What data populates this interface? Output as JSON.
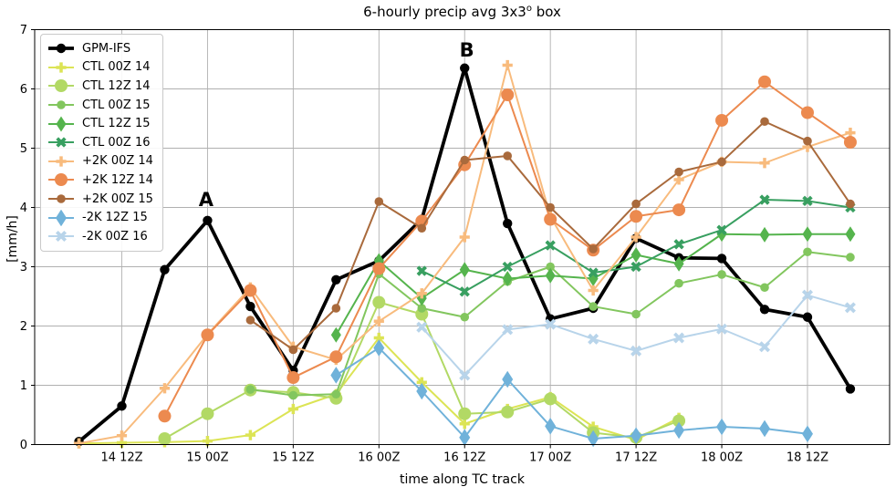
{
  "title": {
    "prefix": "6-hourly precip avg 3x3",
    "sup": "o",
    "suffix": " box"
  },
  "ylabel": "[mm/h]",
  "xlabel": "time along TC track",
  "axis": {
    "x_tick_labels": [
      "14 12Z",
      "15 00Z",
      "15 12Z",
      "16 00Z",
      "16 12Z",
      "17 00Z",
      "17 12Z",
      "18 00Z",
      "18 12Z"
    ],
    "x_tick_hours": [
      12,
      24,
      36,
      48,
      60,
      72,
      84,
      96,
      108
    ],
    "y_tick_labels": [
      "0",
      "1",
      "2",
      "3",
      "4",
      "5",
      "6",
      "7"
    ]
  },
  "legend": {
    "note": "items mirror chart_data.series order"
  },
  "chart_data": {
    "type": "line",
    "title": "6-hourly precip avg 3x3° box",
    "xlabel": "time along TC track",
    "ylabel": "[mm/h]",
    "ylim": [
      0,
      7
    ],
    "xlim_hours_from_14_00Z": [
      -0.2,
      119.5
    ],
    "grid": true,
    "legend_position": "upper left",
    "x_start_hour": 6,
    "x_step_hours": 6,
    "categories": [
      "14 06Z",
      "14 12Z",
      "14 18Z",
      "15 00Z",
      "15 06Z",
      "15 12Z",
      "15 18Z",
      "16 00Z",
      "16 06Z",
      "16 12Z",
      "16 18Z",
      "17 00Z",
      "17 06Z",
      "17 12Z",
      "17 18Z",
      "18 00Z",
      "18 06Z",
      "18 12Z",
      "18 18Z"
    ],
    "series": [
      {
        "name": "GPM-IFS",
        "color": "#000000",
        "marker": "circle",
        "marker_size": 5.2,
        "line_width": 3.8,
        "values": [
          0.05,
          0.65,
          2.95,
          3.78,
          2.33,
          1.25,
          2.78,
          3.1,
          3.8,
          6.35,
          3.73,
          2.12,
          2.3,
          3.48,
          3.15,
          3.14,
          2.28,
          2.15,
          0.94
        ]
      },
      {
        "name": "CTL 00Z 14",
        "color": "#dce455",
        "marker": "plus",
        "marker_size": 5.6,
        "line_width": 2,
        "values": [
          0.02,
          0.03,
          0.04,
          0.06,
          0.16,
          0.6,
          0.85,
          1.8,
          1.05,
          0.35,
          0.6,
          0.8,
          0.3,
          0.08,
          0.45,
          null,
          null,
          null,
          null
        ]
      },
      {
        "name": "CTL 12Z 14",
        "color": "#b2d965",
        "marker": "circle",
        "marker_size": 7,
        "line_width": 2,
        "values": [
          null,
          null,
          0.1,
          0.52,
          0.92,
          0.88,
          0.78,
          2.4,
          2.2,
          0.52,
          0.55,
          0.77,
          0.2,
          0.12,
          0.4,
          null,
          null,
          null,
          null
        ]
      },
      {
        "name": "CTL 00Z 15",
        "color": "#82c65e",
        "marker": "circle",
        "marker_size": 4.8,
        "line_width": 2,
        "values": [
          null,
          null,
          null,
          null,
          0.93,
          0.83,
          0.85,
          2.88,
          2.3,
          2.15,
          2.75,
          3.0,
          2.33,
          2.2,
          2.72,
          2.87,
          2.65,
          3.25,
          3.16
        ]
      },
      {
        "name": "CTL 12Z 15",
        "color": "#55b44d",
        "marker": "diamond",
        "marker_size": 5.5,
        "line_width": 2,
        "values": [
          null,
          null,
          null,
          null,
          null,
          null,
          1.85,
          3.1,
          2.47,
          2.95,
          2.8,
          2.85,
          2.8,
          3.2,
          3.05,
          3.55,
          3.54,
          3.55,
          3.55
        ]
      },
      {
        "name": "CTL 00Z 16",
        "color": "#389f60",
        "marker": "x",
        "marker_size": 6,
        "line_width": 2,
        "values": [
          null,
          null,
          null,
          null,
          null,
          null,
          null,
          null,
          2.93,
          2.58,
          3.0,
          3.36,
          2.9,
          3.0,
          3.38,
          3.62,
          4.13,
          4.11,
          4.0
        ]
      },
      {
        "name": "+2K 00Z 14",
        "color": "#f8bb7d",
        "marker": "plus",
        "marker_size": 5.6,
        "line_width": 2,
        "values": [
          0.02,
          0.15,
          0.95,
          1.86,
          2.65,
          1.65,
          1.43,
          2.08,
          2.55,
          3.5,
          6.4,
          3.85,
          2.6,
          3.5,
          4.47,
          4.77,
          4.75,
          5.02,
          5.26
        ]
      },
      {
        "name": "+2K 12Z 14",
        "color": "#ec8a4f",
        "marker": "circle",
        "marker_size": 7,
        "line_width": 2,
        "values": [
          null,
          null,
          0.48,
          1.85,
          2.6,
          1.13,
          1.48,
          2.97,
          3.77,
          4.72,
          5.9,
          3.8,
          3.28,
          3.85,
          3.96,
          5.47,
          6.12,
          5.6,
          5.1
        ]
      },
      {
        "name": "+2K 00Z 15",
        "color": "#a96a3c",
        "marker": "circle",
        "marker_size": 4.8,
        "line_width": 2,
        "values": [
          null,
          null,
          null,
          null,
          2.1,
          1.6,
          2.3,
          4.1,
          3.65,
          4.8,
          4.87,
          4.0,
          3.3,
          4.06,
          4.6,
          4.77,
          5.45,
          5.12,
          4.06
        ]
      },
      {
        "name": "-2K 12Z 15",
        "color": "#70b2da",
        "marker": "diamond",
        "marker_size": 6,
        "line_width": 2,
        "values": [
          null,
          null,
          null,
          null,
          null,
          null,
          1.17,
          1.63,
          0.9,
          0.12,
          1.1,
          0.31,
          0.1,
          0.15,
          0.24,
          0.3,
          0.27,
          0.18,
          null
        ]
      },
      {
        "name": "-2K 00Z 16",
        "color": "#b8d4ea",
        "marker": "x",
        "marker_size": 6.5,
        "line_width": 2,
        "values": [
          null,
          null,
          null,
          null,
          null,
          null,
          null,
          null,
          1.98,
          1.17,
          1.94,
          2.03,
          1.78,
          1.58,
          1.8,
          1.95,
          1.65,
          2.52,
          2.31
        ]
      }
    ],
    "annotations": [
      {
        "text": "A",
        "hour": 23.8,
        "value": 4.02
      },
      {
        "text": "B",
        "hour": 60.3,
        "value": 6.55
      }
    ]
  }
}
